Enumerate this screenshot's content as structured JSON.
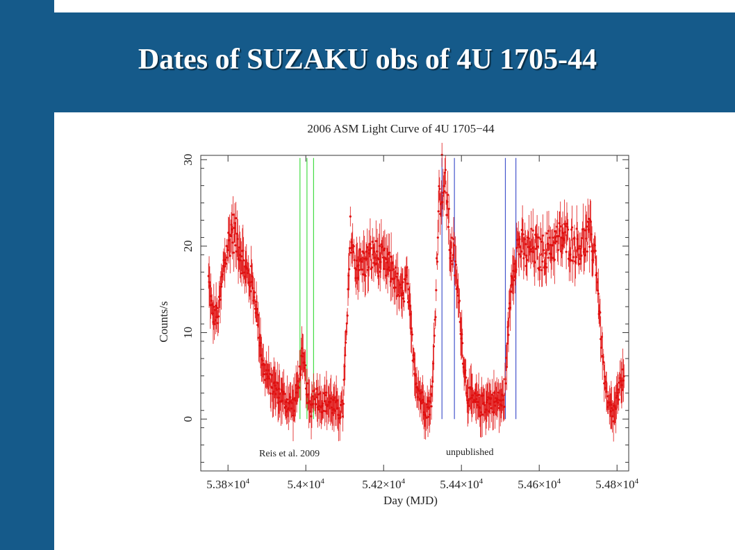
{
  "slide": {
    "title": "Dates of SUZAKU obs of 4U 1705-44"
  },
  "colors": {
    "slide_blue": "#155a8a",
    "data_red": "#e01010",
    "green_lines": "#44dd44",
    "blue_lines": "#4455cc"
  },
  "chart_data": {
    "type": "scatter",
    "title": "2006 ASM Light Curve of 4U 1705−44",
    "xlabel": "Day (MJD)",
    "ylabel": "Counts/s",
    "xlim": [
      53730,
      54830
    ],
    "ylim": [
      -6,
      30.5
    ],
    "error_bars": true,
    "x_ticks": [
      53800,
      54000,
      54200,
      54400,
      54600,
      54800
    ],
    "x_tick_labels": [
      {
        "mant": "5.38×10",
        "exp": "4"
      },
      {
        "mant": "5.4×10",
        "exp": "4"
      },
      {
        "mant": "5.42×10",
        "exp": "4"
      },
      {
        "mant": "5.44×10",
        "exp": "4"
      },
      {
        "mant": "5.46×10",
        "exp": "4"
      },
      {
        "mant": "5.48×10",
        "exp": "4"
      }
    ],
    "y_ticks": [
      0,
      10,
      20,
      30
    ],
    "y_tick_labels": [
      "0",
      "10",
      "20",
      "30"
    ],
    "light_curve_knots": {
      "x": [
        53750,
        53760,
        53775,
        53790,
        53810,
        53830,
        53845,
        53860,
        53870,
        53880,
        53890,
        53910,
        53930,
        53950,
        53970,
        53980,
        53990,
        54000,
        54005,
        54012,
        54020,
        54040,
        54060,
        54080,
        54095,
        54100,
        54108,
        54115,
        54125,
        54150,
        54175,
        54200,
        54225,
        54245,
        54260,
        54275,
        54285,
        54300,
        54315,
        54325,
        54335,
        54340,
        54350,
        54355,
        54365,
        54370,
        54380,
        54390,
        54400,
        54405,
        54415,
        54430,
        54450,
        54470,
        54490,
        54510,
        54520,
        54530,
        54545,
        54555,
        54565,
        54580,
        54600,
        54630,
        54660,
        54700,
        54730,
        54745,
        54755,
        54765,
        54775,
        54790,
        54800,
        54810,
        54818
      ],
      "y": [
        16,
        12,
        12,
        18,
        22,
        20,
        17,
        16,
        14,
        10,
        6,
        4,
        3,
        2,
        1.5,
        4,
        7,
        5,
        2,
        1,
        3,
        2,
        2,
        1,
        1,
        6,
        13,
        22,
        18,
        18,
        19,
        18,
        17,
        14,
        16,
        8,
        4,
        2,
        1,
        3,
        15,
        24,
        28,
        27,
        25,
        20,
        19,
        15,
        10,
        7,
        3,
        2,
        1.5,
        2,
        2,
        2,
        10,
        17,
        20,
        20,
        19,
        20,
        19,
        20,
        21,
        20,
        21,
        19,
        12,
        6,
        1.5,
        0.5,
        2,
        4,
        5
      ]
    },
    "reference_lines": [
      {
        "group": "green",
        "x": [
          53985,
          54003,
          54020
        ]
      },
      {
        "group": "blue",
        "x": [
          54350,
          54382,
          54513,
          54540
        ]
      }
    ],
    "annotations": [
      "Reis et al. 2009",
      "unpublished"
    ]
  }
}
